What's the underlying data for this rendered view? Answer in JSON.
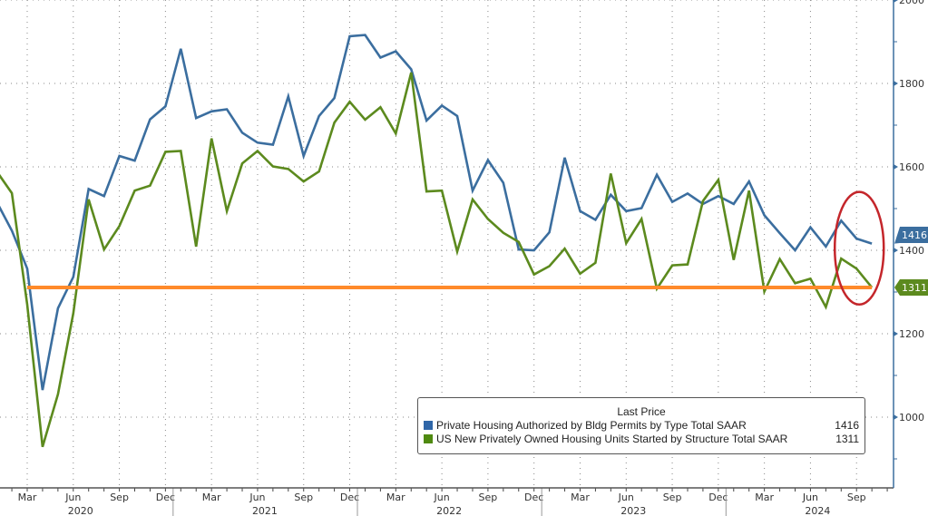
{
  "chart_data": {
    "type": "line",
    "title": "",
    "xlabel": "",
    "ylabel": "",
    "x_start": "2020-01",
    "x_end": "2024-10",
    "ylim": [
      830,
      2000
    ],
    "y_ticks": [
      1000,
      1200,
      1400,
      1600,
      1800,
      2000
    ],
    "y_tick_labels": [
      "1000",
      "1200",
      "1400",
      "1600",
      "1800",
      "2000"
    ],
    "y_axis_side": "right",
    "grid": true,
    "x_ticks": [
      {
        "m": 2,
        "label": "Mar"
      },
      {
        "m": 5,
        "label": "Jun"
      },
      {
        "m": 8,
        "label": "Sep"
      },
      {
        "m": 11,
        "label": "Dec"
      },
      {
        "m": 14,
        "label": "Mar"
      },
      {
        "m": 17,
        "label": "Jun"
      },
      {
        "m": 20,
        "label": "Sep"
      },
      {
        "m": 23,
        "label": "Dec"
      },
      {
        "m": 26,
        "label": "Mar"
      },
      {
        "m": 29,
        "label": "Jun"
      },
      {
        "m": 32,
        "label": "Sep"
      },
      {
        "m": 35,
        "label": "Dec"
      },
      {
        "m": 38,
        "label": "Mar"
      },
      {
        "m": 41,
        "label": "Jun"
      },
      {
        "m": 44,
        "label": "Sep"
      },
      {
        "m": 47,
        "label": "Dec"
      },
      {
        "m": 50,
        "label": "Mar"
      },
      {
        "m": 53,
        "label": "Jun"
      },
      {
        "m": 56,
        "label": "Sep"
      }
    ],
    "years": [
      {
        "m": 5,
        "label": "2020"
      },
      {
        "m": 17,
        "label": "2021"
      },
      {
        "m": 29,
        "label": "2022"
      },
      {
        "m": 41,
        "label": "2023"
      },
      {
        "m": 53,
        "label": "2024"
      }
    ],
    "legend_title": "Last Price",
    "legend_position": "bottom-right",
    "series": [
      {
        "name": "Private Housing Authorized by Bldg Permits by Type Total SAAR",
        "color": "#3b6e9f",
        "swatch": "#2f66a8",
        "last": "1416",
        "values": [
          1517,
          1447,
          1356,
          1065,
          1261,
          1336,
          1547,
          1530,
          1626,
          1615,
          1714,
          1745,
          1883,
          1717,
          1733,
          1738,
          1682,
          1658,
          1653,
          1769,
          1626,
          1722,
          1765,
          1913,
          1916,
          1862,
          1877,
          1834,
          1711,
          1747,
          1722,
          1543,
          1616,
          1562,
          1402,
          1400,
          1443,
          1622,
          1494,
          1473,
          1533,
          1494,
          1501,
          1581,
          1516,
          1536,
          1511,
          1530,
          1511,
          1565,
          1484,
          1441,
          1400,
          1455,
          1409,
          1471,
          1428,
          1416
        ]
      },
      {
        "name": "US New Privately Owned Housing Units Started by Structure Total SAAR",
        "color": "#5c8a1e",
        "swatch": "#4f8a10",
        "last": "1311",
        "values": [
          1590,
          1537,
          1270,
          929,
          1055,
          1249,
          1522,
          1402,
          1458,
          1543,
          1555,
          1636,
          1638,
          1409,
          1668,
          1494,
          1608,
          1638,
          1601,
          1595,
          1565,
          1589,
          1706,
          1756,
          1713,
          1743,
          1680,
          1826,
          1541,
          1543,
          1397,
          1522,
          1475,
          1442,
          1420,
          1342,
          1362,
          1404,
          1344,
          1370,
          1584,
          1417,
          1475,
          1308,
          1364,
          1366,
          1518,
          1569,
          1377,
          1543,
          1301,
          1379,
          1321,
          1332,
          1264,
          1380,
          1356,
          1311
        ]
      }
    ],
    "annotations": [
      {
        "type": "hline",
        "value": 1311,
        "from_m": 2,
        "to_m": 57,
        "color": "#ff8a2a"
      },
      {
        "type": "ellipse",
        "around_m": [
          55,
          57
        ],
        "value_range": [
          1270,
          1540
        ],
        "color": "#c4262b"
      }
    ]
  }
}
